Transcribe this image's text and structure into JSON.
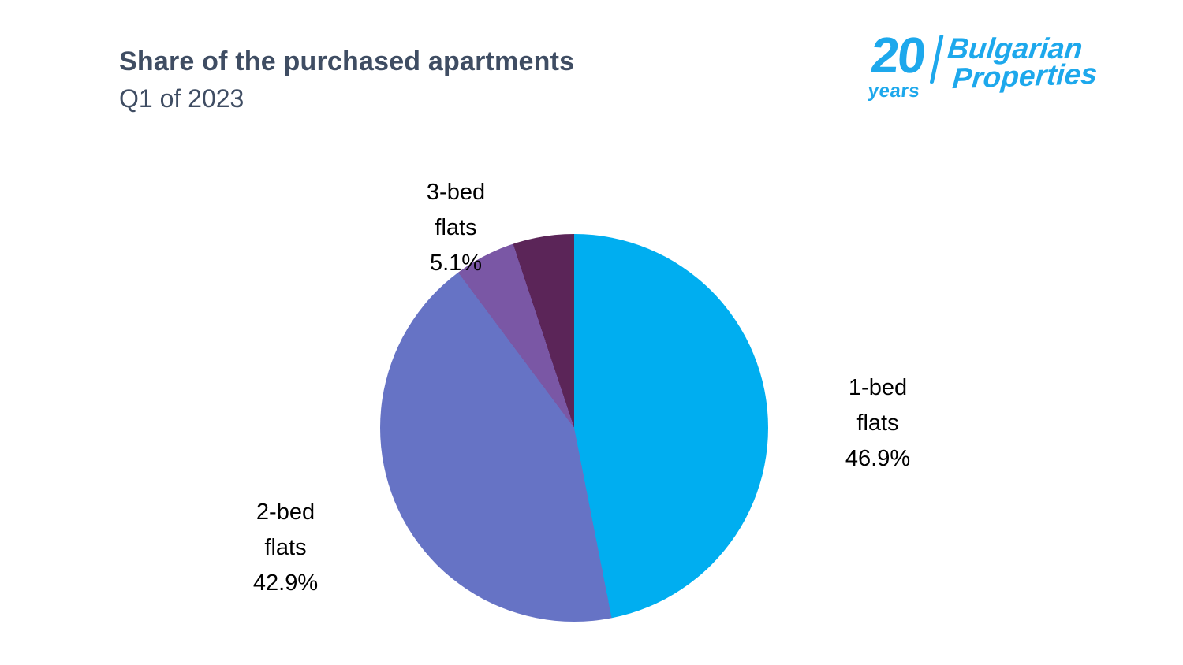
{
  "header": {
    "title": "Share of the purchased apartments",
    "subtitle": "Q1 of 2023"
  },
  "logo": {
    "number": "20",
    "years": "years",
    "name_line1": "Bulgarian",
    "name_line2": "Properties",
    "brand_color": "#1da8ec"
  },
  "chart_data": {
    "type": "pie",
    "title": "Share of the purchased apartments Q1 of 2023",
    "direction": "clockwise",
    "start_angle_deg": 0,
    "legend_position": "none",
    "slices": [
      {
        "label": "1-bed flats",
        "value": 46.9,
        "color": "#00aef0",
        "display": "1-bed\nflats\n46.9%"
      },
      {
        "label": "2-bed flats",
        "value": 42.9,
        "color": "#6673c5",
        "display": "2-bed\nflats\n42.9%"
      },
      {
        "label": "3-bed flats",
        "value": 5.1,
        "color": "#7a57a5",
        "display": "3-bed\nflats\n5.1%"
      },
      {
        "label": "",
        "value": 5.1,
        "color": "#5b2558",
        "display": ""
      }
    ]
  }
}
